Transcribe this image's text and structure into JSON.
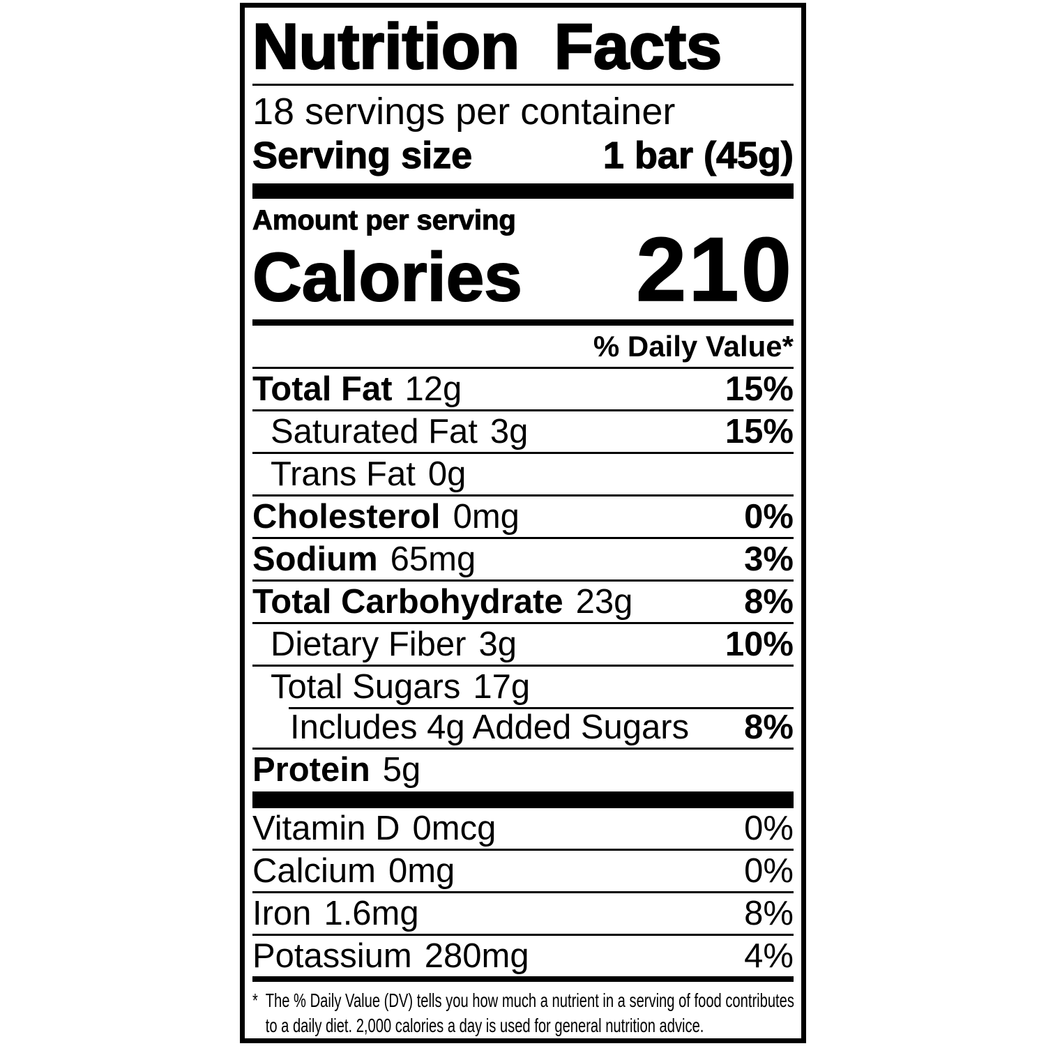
{
  "colors": {
    "ink": "#000000",
    "background": "#ffffff"
  },
  "label": {
    "title": "Nutrition Facts",
    "servings_per_container": "18 servings per container",
    "serving_size_label": "Serving size",
    "serving_size_value": "1 bar (45g)",
    "amount_per_serving": "Amount per serving",
    "calories_label": "Calories",
    "calories_value": "210",
    "daily_value_header": "% Daily Value*",
    "nutrients": [
      {
        "name": "Total Fat",
        "amount": "12g",
        "dv": "15%"
      },
      {
        "name": "Saturated Fat",
        "amount": "3g",
        "dv": "15%"
      },
      {
        "name": "Trans Fat",
        "amount": "0g",
        "dv": ""
      },
      {
        "name": "Cholesterol",
        "amount": "0mg",
        "dv": "0%"
      },
      {
        "name": "Sodium",
        "amount": "65mg",
        "dv": "3%"
      },
      {
        "name": "Total Carbohydrate",
        "amount": "23g",
        "dv": "8%"
      },
      {
        "name": "Dietary Fiber",
        "amount": "3g",
        "dv": "10%"
      },
      {
        "name": "Total Sugars",
        "amount": "17g",
        "dv": ""
      },
      {
        "name": "Includes 4g Added Sugars",
        "amount": "",
        "dv": "8%"
      },
      {
        "name": "Protein",
        "amount": "5g",
        "dv": ""
      }
    ],
    "micronutrients": [
      {
        "name": "Vitamin D",
        "amount": "0mcg",
        "dv": "0%"
      },
      {
        "name": "Calcium",
        "amount": "0mg",
        "dv": "0%"
      },
      {
        "name": "Iron",
        "amount": "1.6mg",
        "dv": "8%"
      },
      {
        "name": "Potassium",
        "amount": "280mg",
        "dv": "4%"
      }
    ],
    "footnote": {
      "marker": "*",
      "line1": "The % Daily Value (DV) tells you how much a nutrient in a serving of food contributes",
      "line2": "to a daily diet. 2,000 calories a day is used for general nutrition advice."
    }
  }
}
